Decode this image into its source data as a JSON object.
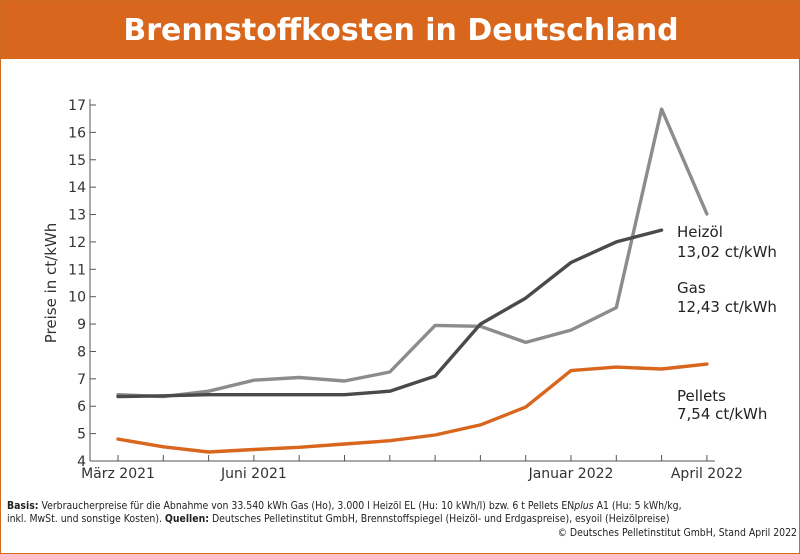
{
  "chart_data": {
    "type": "line",
    "title": "Brennstoffkosten in Deutschland",
    "ylabel": "Preise in ct/kWh",
    "xlabel": "",
    "ylim": [
      4,
      17
    ],
    "yticks": [
      4,
      5,
      6,
      7,
      8,
      9,
      10,
      11,
      12,
      13,
      14,
      15,
      16,
      17
    ],
    "grid": false,
    "x": [
      "2021-03",
      "2021-04",
      "2021-05",
      "2021-06",
      "2021-07",
      "2021-08",
      "2021-09",
      "2021-10",
      "2021-11",
      "2021-12",
      "2022-01",
      "2022-02",
      "2022-03",
      "2022-04"
    ],
    "x_tick_labels": [
      {
        "label": "März 2021",
        "index": 0
      },
      {
        "label": "Juni 2021",
        "index": 3
      },
      {
        "label": "Januar 2022",
        "index": 10
      },
      {
        "label": "April 2022",
        "index": 13
      }
    ],
    "series": [
      {
        "name": "Heizöl",
        "color": "#8c8c8c",
        "values": [
          6.42,
          6.35,
          6.55,
          6.95,
          7.05,
          6.92,
          7.25,
          8.95,
          8.92,
          8.33,
          8.78,
          9.6,
          16.85,
          13.02
        ]
      },
      {
        "name": "Gas",
        "color": "#4a4a4a",
        "values": [
          6.35,
          6.38,
          6.42,
          6.42,
          6.42,
          6.42,
          6.55,
          7.1,
          9.0,
          9.95,
          11.25,
          12.0,
          12.43,
          null
        ]
      },
      {
        "name": "Pellets",
        "color": "#d8661c",
        "values": [
          4.8,
          4.52,
          4.33,
          4.42,
          4.5,
          4.62,
          4.74,
          4.95,
          5.32,
          5.97,
          7.3,
          7.43,
          7.36,
          7.54
        ]
      }
    ],
    "annotations": [
      {
        "name": "Heizöl",
        "value": "13,02 ct/kWh"
      },
      {
        "name": "Gas",
        "value": "12,43 ct/kWh"
      },
      {
        "name": "Pellets",
        "value": "7,54 ct/kWh"
      }
    ]
  },
  "footer": {
    "basis_label": "Basis:",
    "basis_text": " Verbraucherpreise für die Abnahme von 33.540 kWh Gas (Ho), 3.000 l Heizöl EL (Hu: 10 kWh/l) bzw. 6 t Pellets EN",
    "basis_plus": "plus",
    "basis_text2": " A1 (Hu: 5 kWh/kg,",
    "line2_text": "inkl. MwSt. und sonstige Kosten). ",
    "quellen_label": "Quellen:",
    "quellen_text": " Deutsches Pelletinstitut GmbH, Brennstoffspiegel (Heizöl- und Erdgaspreise), esyoil (Heizölpreise)",
    "copyright": "© Deutsches Pelletinstitut GmbH, Stand April 2022"
  }
}
